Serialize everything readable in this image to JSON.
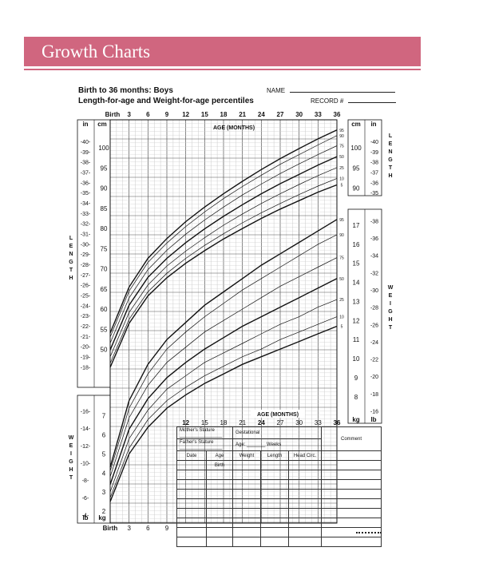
{
  "page_title": "Growth Charts",
  "header": {
    "line1": "Birth to 36 months: Boys",
    "line2": "Length-for-age and Weight-for-age percentiles",
    "name_label": "NAME",
    "record_label": "RECORD #"
  },
  "labels": {
    "age_months": "AGE (MONTHS)",
    "length_side": "LENGTH",
    "weight_side": "WEIGHT",
    "in": "in",
    "cm": "cm",
    "lb": "lb",
    "kg": "kg",
    "birth": "Birth"
  },
  "table": {
    "mothers_stature": "Mother's Stature",
    "fathers_stature": "Father's Stature",
    "gestational": "Gestational",
    "age": "Age:",
    "weeks": "Weeks",
    "comment": "Comment",
    "columns": [
      "Date",
      "Age",
      "Weight",
      "Length",
      "Head Circ."
    ],
    "age_sub": "Birth"
  },
  "chart_data": {
    "type": "line",
    "x_ticks_top": [
      "Birth",
      "3",
      "6",
      "9",
      "12",
      "15",
      "18",
      "21",
      "24",
      "27",
      "30",
      "33",
      "36"
    ],
    "x_ticks_mid": [
      "12",
      "15",
      "18",
      "21",
      "24",
      "27",
      "30",
      "33",
      "36"
    ],
    "x_ticks_bottom": [
      "Birth",
      "3",
      "6",
      "9"
    ],
    "xlim": [
      0,
      36
    ],
    "length_cm_ticks": [
      50,
      55,
      60,
      65,
      70,
      75,
      80,
      85,
      90,
      95,
      100
    ],
    "length_cm_ticks_right": [
      90,
      95,
      100
    ],
    "length_in_ticks": [
      18,
      19,
      20,
      21,
      22,
      23,
      24,
      25,
      26,
      27,
      28,
      29,
      30,
      31,
      32,
      33,
      34,
      35,
      36,
      37,
      38,
      39,
      40,
      41
    ],
    "length_in_ticks_right": [
      35,
      36,
      37,
      38,
      39,
      40,
      41
    ],
    "weight_kg_ticks_right": [
      8,
      9,
      10,
      11,
      12,
      13,
      14,
      15,
      16,
      17
    ],
    "weight_lb_ticks_right": [
      16,
      18,
      20,
      22,
      24,
      26,
      28,
      30,
      32,
      34,
      36,
      38
    ],
    "weight_kg_ticks_left": [
      2,
      3,
      4,
      5,
      6,
      7
    ],
    "weight_lb_ticks_left": [
      4,
      6,
      8,
      10,
      12,
      14,
      16
    ],
    "percentiles": [
      "5",
      "10",
      "25",
      "50",
      "75",
      "90",
      "95"
    ],
    "series": [
      {
        "kind": "length",
        "name": "5",
        "x": [
          0,
          3,
          6,
          9,
          12,
          15,
          18,
          21,
          24,
          27,
          30,
          33,
          36
        ],
        "y": [
          45.6,
          56.5,
          63.3,
          67.8,
          71.4,
          74.5,
          77.4,
          80.0,
          82.5,
          84.8,
          86.9,
          89.0,
          90.8
        ]
      },
      {
        "kind": "length",
        "name": "10",
        "x": [
          0,
          3,
          6,
          9,
          12,
          15,
          18,
          21,
          24,
          27,
          30,
          33,
          36
        ],
        "y": [
          46.6,
          57.5,
          64.3,
          68.9,
          72.6,
          75.8,
          78.7,
          81.4,
          83.9,
          86.2,
          88.4,
          90.5,
          92.4
        ]
      },
      {
        "kind": "length",
        "name": "25",
        "x": [
          0,
          3,
          6,
          9,
          12,
          15,
          18,
          21,
          24,
          27,
          30,
          33,
          36
        ],
        "y": [
          48.2,
          59.2,
          66.0,
          70.7,
          74.4,
          77.7,
          80.8,
          83.6,
          86.2,
          88.6,
          90.9,
          93.1,
          95.1
        ]
      },
      {
        "kind": "length",
        "name": "50",
        "x": [
          0,
          3,
          6,
          9,
          12,
          15,
          18,
          21,
          24,
          27,
          30,
          33,
          36
        ],
        "y": [
          49.9,
          61.0,
          67.9,
          72.6,
          76.5,
          79.9,
          83.0,
          85.9,
          88.6,
          91.1,
          93.4,
          95.7,
          97.8
        ]
      },
      {
        "kind": "length",
        "name": "75",
        "x": [
          0,
          3,
          6,
          9,
          12,
          15,
          18,
          21,
          24,
          27,
          30,
          33,
          36
        ],
        "y": [
          51.6,
          62.8,
          69.8,
          74.6,
          78.6,
          82.1,
          85.3,
          88.3,
          91.0,
          93.6,
          96.0,
          98.3,
          100.5
        ]
      },
      {
        "kind": "length",
        "name": "90",
        "x": [
          0,
          3,
          6,
          9,
          12,
          15,
          18,
          21,
          24,
          27,
          30,
          33,
          36
        ],
        "y": [
          53.1,
          64.5,
          71.6,
          76.4,
          80.5,
          84.1,
          87.4,
          90.4,
          93.2,
          95.9,
          98.3,
          100.7,
          103.0
        ]
      },
      {
        "kind": "length",
        "name": "95",
        "x": [
          0,
          3,
          6,
          9,
          12,
          15,
          18,
          21,
          24,
          27,
          30,
          33,
          36
        ],
        "y": [
          54.1,
          65.5,
          72.6,
          77.5,
          81.7,
          85.3,
          88.6,
          91.7,
          94.6,
          97.3,
          99.8,
          102.2,
          104.4
        ]
      },
      {
        "kind": "weight",
        "name": "5",
        "x": [
          0,
          3,
          6,
          9,
          12,
          15,
          18,
          21,
          24,
          27,
          30,
          33,
          36
        ],
        "y": [
          2.5,
          5.0,
          6.4,
          7.4,
          8.1,
          8.7,
          9.2,
          9.7,
          10.1,
          10.5,
          10.9,
          11.3,
          11.7
        ]
      },
      {
        "kind": "weight",
        "name": "10",
        "x": [
          0,
          3,
          6,
          9,
          12,
          15,
          18,
          21,
          24,
          27,
          30,
          33,
          36
        ],
        "y": [
          2.7,
          5.3,
          6.8,
          7.8,
          8.5,
          9.1,
          9.6,
          10.1,
          10.5,
          11.0,
          11.4,
          11.8,
          12.2
        ]
      },
      {
        "kind": "weight",
        "name": "25",
        "x": [
          0,
          3,
          6,
          9,
          12,
          15,
          18,
          21,
          24,
          27,
          30,
          33,
          36
        ],
        "y": [
          3.0,
          5.8,
          7.3,
          8.4,
          9.1,
          9.8,
          10.3,
          10.8,
          11.3,
          11.8,
          12.2,
          12.7,
          13.1
        ]
      },
      {
        "kind": "weight",
        "name": "50",
        "x": [
          0,
          3,
          6,
          9,
          12,
          15,
          18,
          21,
          24,
          27,
          30,
          33,
          36
        ],
        "y": [
          3.4,
          6.3,
          7.9,
          9.0,
          9.8,
          10.5,
          11.1,
          11.7,
          12.2,
          12.7,
          13.2,
          13.7,
          14.2
        ]
      },
      {
        "kind": "weight",
        "name": "75",
        "x": [
          0,
          3,
          6,
          9,
          12,
          15,
          18,
          21,
          24,
          27,
          30,
          33,
          36
        ],
        "y": [
          3.8,
          6.9,
          8.6,
          9.8,
          10.6,
          11.4,
          12.0,
          12.6,
          13.2,
          13.8,
          14.3,
          14.8,
          15.3
        ]
      },
      {
        "kind": "weight",
        "name": "90",
        "x": [
          0,
          3,
          6,
          9,
          12,
          15,
          18,
          21,
          24,
          27,
          30,
          33,
          36
        ],
        "y": [
          4.1,
          7.4,
          9.2,
          10.5,
          11.4,
          12.2,
          12.9,
          13.6,
          14.2,
          14.8,
          15.4,
          16.0,
          16.5
        ]
      },
      {
        "kind": "weight",
        "name": "95",
        "x": [
          0,
          3,
          6,
          9,
          12,
          15,
          18,
          21,
          24,
          27,
          30,
          33,
          36
        ],
        "y": [
          4.3,
          7.8,
          9.7,
          11.0,
          11.9,
          12.8,
          13.5,
          14.2,
          14.9,
          15.5,
          16.1,
          16.7,
          17.3
        ]
      }
    ]
  },
  "colors": {
    "banner": "#d0667f"
  }
}
